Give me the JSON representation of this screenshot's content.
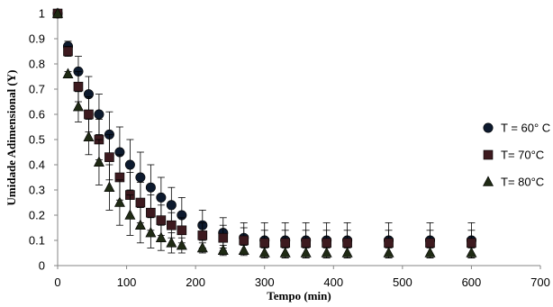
{
  "chart_data": {
    "type": "scatter",
    "xlabel": "Tempo (min)",
    "ylabel": "Umidade Adimensional (Y)",
    "xlim": [
      0,
      700
    ],
    "ylim": [
      0,
      1
    ],
    "xticks": [
      "0",
      "100",
      "200",
      "300",
      "400",
      "500",
      "600",
      "700"
    ],
    "yticks": [
      "0",
      "0.1",
      "0.2",
      "0.3",
      "0.4",
      "0.5",
      "0.6",
      "0.7",
      "0.8",
      "0.9",
      "1"
    ],
    "grid": false,
    "legend_position": "right",
    "series": [
      {
        "name": "T = 60° C",
        "marker": "circle",
        "color": "#0d1a2e",
        "x": [
          0,
          15,
          30,
          45,
          60,
          75,
          90,
          105,
          120,
          135,
          150,
          165,
          180,
          210,
          240,
          270,
          300,
          330,
          360,
          390,
          420,
          480,
          540,
          600
        ],
        "y": [
          1.0,
          0.87,
          0.77,
          0.68,
          0.6,
          0.52,
          0.45,
          0.4,
          0.35,
          0.31,
          0.27,
          0.24,
          0.2,
          0.16,
          0.13,
          0.11,
          0.1,
          0.1,
          0.1,
          0.1,
          0.1,
          0.1,
          0.1,
          0.1
        ],
        "err": [
          0,
          0.02,
          0.06,
          0.07,
          0.08,
          0.09,
          0.1,
          0.1,
          0.1,
          0.09,
          0.08,
          0.07,
          0.07,
          0.06,
          0.06,
          0.06,
          0.07,
          0.07,
          0.07,
          0.07,
          0.07,
          0.07,
          0.07,
          0.07
        ]
      },
      {
        "name": "T= 70°C",
        "marker": "square",
        "color": "#3d1a1f",
        "x": [
          0,
          15,
          30,
          45,
          60,
          75,
          90,
          105,
          120,
          135,
          150,
          165,
          180,
          210,
          240,
          270,
          300,
          330,
          360,
          390,
          420,
          480,
          540,
          600
        ],
        "y": [
          1.0,
          0.85,
          0.71,
          0.6,
          0.5,
          0.43,
          0.35,
          0.28,
          0.25,
          0.21,
          0.18,
          0.16,
          0.14,
          0.12,
          0.11,
          0.1,
          0.09,
          0.09,
          0.09,
          0.09,
          0.09,
          0.09,
          0.09,
          0.09
        ],
        "err": [
          0,
          0.02,
          0.06,
          0.07,
          0.08,
          0.09,
          0.09,
          0.09,
          0.08,
          0.07,
          0.06,
          0.05,
          0.05,
          0.05,
          0.05,
          0.05,
          0.05,
          0.05,
          0.05,
          0.05,
          0.05,
          0.05,
          0.05,
          0.05
        ]
      },
      {
        "name": "T= 80°C",
        "marker": "triangle",
        "color": "#1f2a14",
        "x": [
          0,
          15,
          30,
          45,
          60,
          75,
          90,
          105,
          120,
          135,
          150,
          165,
          180,
          210,
          240,
          270,
          300,
          330,
          360,
          390,
          420,
          480,
          540,
          600
        ],
        "y": [
          1.0,
          0.76,
          0.63,
          0.51,
          0.41,
          0.31,
          0.25,
          0.2,
          0.16,
          0.13,
          0.11,
          0.09,
          0.08,
          0.07,
          0.06,
          0.06,
          0.05,
          0.05,
          0.05,
          0.05,
          0.05,
          0.05,
          0.05,
          0.05
        ],
        "err": [
          0,
          0.01,
          0.06,
          0.07,
          0.09,
          0.09,
          0.09,
          0.08,
          0.07,
          0.06,
          0.05,
          0.04,
          0.03,
          0.02,
          0.02,
          0.02,
          0.02,
          0.02,
          0.02,
          0.02,
          0.02,
          0.02,
          0.02,
          0.02
        ]
      }
    ]
  }
}
